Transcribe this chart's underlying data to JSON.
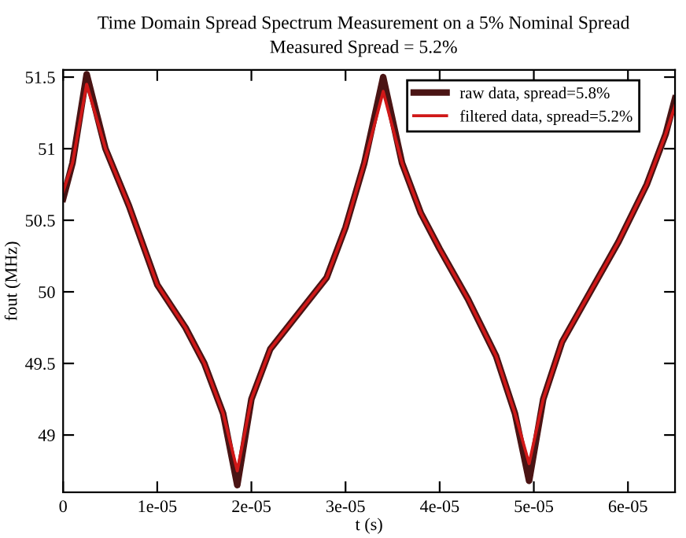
{
  "chart_data": {
    "type": "line",
    "title": "Time Domain Spread Spectrum Measurement on a 5% Nominal Spread",
    "subtitle": "Measured Spread = 5.2%",
    "xlabel": "t (s)",
    "ylabel": "fout (MHz)",
    "xlim": [
      0,
      6.5e-05
    ],
    "ylim": [
      48.6,
      51.55
    ],
    "xticks": [
      0,
      {
        "value": 1e-05,
        "label": "1e-05"
      },
      {
        "value": 2e-05,
        "label": "2e-05"
      },
      {
        "value": 3e-05,
        "label": "3e-05"
      },
      {
        "value": 4e-05,
        "label": "4e-05"
      },
      {
        "value": 5e-05,
        "label": "5e-05"
      },
      {
        "value": 6e-05,
        "label": "6e-05"
      }
    ],
    "yticks": [
      49,
      49.5,
      50,
      50.5,
      51,
      51.5
    ],
    "legend": "top right",
    "grid": false,
    "marker": "none",
    "line_style": "solid",
    "series": [
      {
        "name": "raw data, spread=5.8%",
        "color": "#4a1414",
        "x": [
          0,
          1e-06,
          2.5e-06,
          4.5e-06,
          7e-06,
          1e-05,
          1.3e-05,
          1.5e-05,
          1.7e-05,
          1.85e-05,
          2e-05,
          2.2e-05,
          2.5e-05,
          2.8e-05,
          3e-05,
          3.2e-05,
          3.4e-05,
          3.6e-05,
          3.8e-05,
          4e-05,
          4.3e-05,
          4.6e-05,
          4.8e-05,
          4.95e-05,
          5.1e-05,
          5.3e-05,
          5.6e-05,
          5.9e-05,
          6.2e-05,
          6.4e-05,
          6.5e-05
        ],
        "values": [
          50.65,
          50.9,
          51.52,
          51.0,
          50.6,
          50.05,
          49.75,
          49.5,
          49.15,
          48.65,
          49.25,
          49.6,
          49.85,
          50.1,
          50.45,
          50.9,
          51.5,
          50.9,
          50.55,
          50.3,
          49.95,
          49.55,
          49.15,
          48.68,
          49.25,
          49.65,
          50.0,
          50.35,
          50.75,
          51.1,
          51.35
        ]
      },
      {
        "name": "filtered data, spread=5.2%",
        "color": "#d01818",
        "x": [
          0,
          1e-06,
          2.5e-06,
          4.5e-06,
          7e-06,
          1e-05,
          1.3e-05,
          1.5e-05,
          1.7e-05,
          1.85e-05,
          2e-05,
          2.2e-05,
          2.5e-05,
          2.8e-05,
          3e-05,
          3.2e-05,
          3.4e-05,
          3.6e-05,
          3.8e-05,
          4e-05,
          4.3e-05,
          4.6e-05,
          4.8e-05,
          4.95e-05,
          5.1e-05,
          5.3e-05,
          5.6e-05,
          5.9e-05,
          6.2e-05,
          6.4e-05,
          6.5e-05
        ],
        "values": [
          50.7,
          50.9,
          51.45,
          51.0,
          50.6,
          50.05,
          49.75,
          49.5,
          49.15,
          48.75,
          49.25,
          49.6,
          49.85,
          50.1,
          50.45,
          50.9,
          51.4,
          50.9,
          50.55,
          50.3,
          49.95,
          49.55,
          49.15,
          48.8,
          49.25,
          49.65,
          50.0,
          50.35,
          50.75,
          51.1,
          51.3
        ]
      }
    ]
  }
}
